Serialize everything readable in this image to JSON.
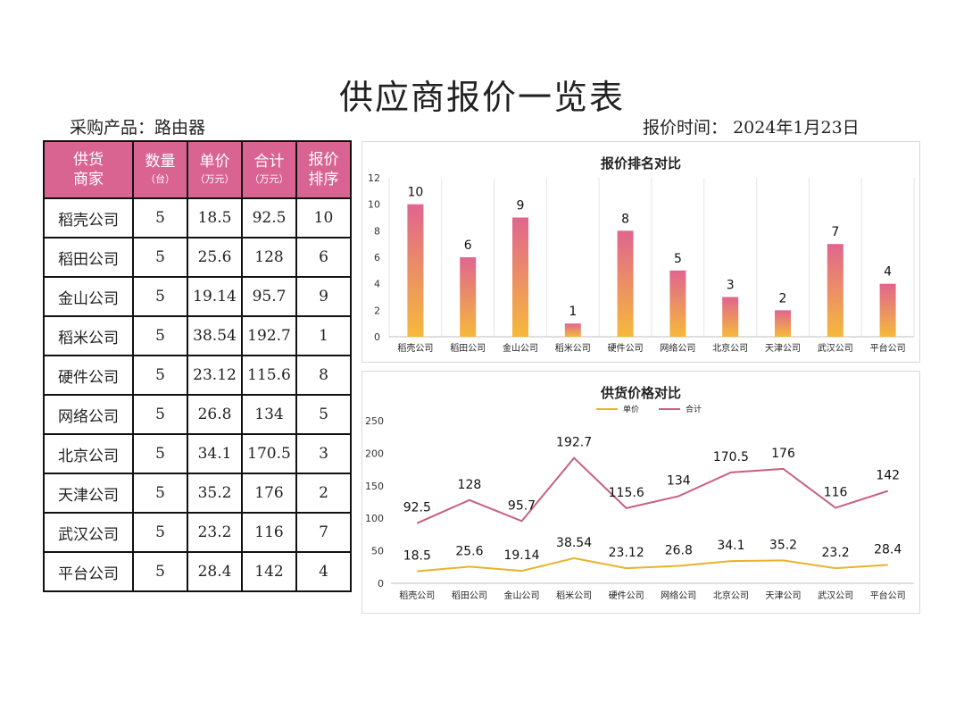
{
  "title": "供应商报价一览表",
  "meta": {
    "product_label": "采购产品：",
    "product_value": "路由器",
    "date_label": "报价时间：",
    "date_value": "2024年1月23日"
  },
  "table": {
    "headers": [
      {
        "main": "供货",
        "main2": "商家",
        "sub": ""
      },
      {
        "main": "数量",
        "main2": "",
        "sub": "（台）"
      },
      {
        "main": "单价",
        "main2": "",
        "sub": "（万元）"
      },
      {
        "main": "合计",
        "main2": "",
        "sub": "（万元）"
      },
      {
        "main": "报价",
        "main2": "排序",
        "sub": ""
      }
    ],
    "rows": [
      [
        "稻壳公司",
        "5",
        "18.5",
        "92.5",
        "10"
      ],
      [
        "稻田公司",
        "5",
        "25.6",
        "128",
        "6"
      ],
      [
        "金山公司",
        "5",
        "19.14",
        "95.7",
        "9"
      ],
      [
        "稻米公司",
        "5",
        "38.54",
        "192.7",
        "1"
      ],
      [
        "硬件公司",
        "5",
        "23.12",
        "115.6",
        "8"
      ],
      [
        "网络公司",
        "5",
        "26.8",
        "134",
        "5"
      ],
      [
        "北京公司",
        "5",
        "34.1",
        "170.5",
        "3"
      ],
      [
        "天津公司",
        "5",
        "35.2",
        "176",
        "2"
      ],
      [
        "武汉公司",
        "5",
        "23.2",
        "116",
        "7"
      ],
      [
        "平台公司",
        "5",
        "28.4",
        "142",
        "4"
      ]
    ]
  },
  "colors": {
    "header_bg": "#d96492",
    "bar_top": "#e0658f",
    "bar_bottom": "#f6b93b",
    "line_total": "#c8607a",
    "line_price": "#e8b32a"
  },
  "chart_data": [
    {
      "type": "bar",
      "title": "报价排名对比",
      "categories": [
        "稻壳公司",
        "稻田公司",
        "金山公司",
        "稻米公司",
        "硬件公司",
        "网络公司",
        "北京公司",
        "天津公司",
        "武汉公司",
        "平台公司"
      ],
      "values": [
        10,
        6,
        9,
        1,
        8,
        5,
        3,
        2,
        7,
        4
      ],
      "ylim": [
        0,
        12
      ],
      "yticks": [
        0,
        2,
        4,
        6,
        8,
        10,
        12
      ],
      "grid": "vertical",
      "data_labels": true
    },
    {
      "type": "line",
      "title": "供货价格对比",
      "categories": [
        "稻壳公司",
        "稻田公司",
        "金山公司",
        "稻米公司",
        "硬件公司",
        "网络公司",
        "北京公司",
        "天津公司",
        "武汉公司",
        "平台公司"
      ],
      "series": [
        {
          "name": "单价",
          "values": [
            18.5,
            25.6,
            19.14,
            38.54,
            23.12,
            26.8,
            34.1,
            35.2,
            23.2,
            28.4
          ]
        },
        {
          "name": "合计",
          "values": [
            92.5,
            128,
            95.7,
            192.7,
            115.6,
            134,
            170.5,
            176,
            116,
            142
          ]
        }
      ],
      "ylim": [
        0,
        250
      ],
      "yticks": [
        0,
        50,
        100,
        150,
        200,
        250
      ],
      "legend": "top-center",
      "data_labels": true
    }
  ]
}
